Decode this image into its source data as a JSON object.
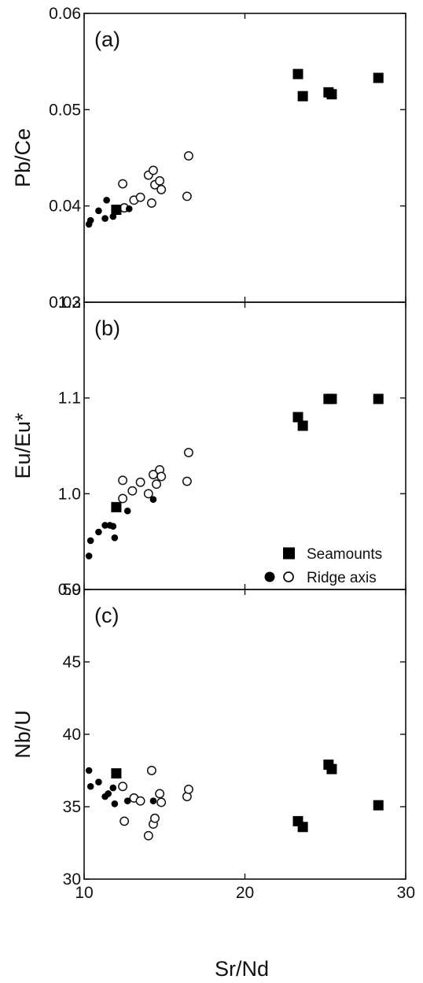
{
  "chart_data": [
    {
      "type": "scatter",
      "panel_label": "(a)",
      "ylabel": "Pb/Ce",
      "xlim": [
        10,
        30
      ],
      "ylim": [
        0.03,
        0.06
      ],
      "yticks": [
        0.03,
        0.04,
        0.05,
        0.06
      ],
      "ytick_labels": [
        "0.03",
        "0.04",
        "0.05",
        "0.06"
      ],
      "series": [
        {
          "marker": "filled-square",
          "points": [
            [
              12.0,
              0.0396
            ],
            [
              23.3,
              0.0537
            ],
            [
              23.6,
              0.0514
            ],
            [
              25.2,
              0.0518
            ],
            [
              25.4,
              0.0516
            ],
            [
              28.3,
              0.0533
            ]
          ]
        },
        {
          "marker": "filled-circle",
          "points": [
            [
              10.3,
              0.0381
            ],
            [
              10.4,
              0.0385
            ],
            [
              10.9,
              0.0395
            ],
            [
              11.3,
              0.0387
            ],
            [
              11.4,
              0.0406
            ],
            [
              11.8,
              0.0389
            ],
            [
              11.9,
              0.0396
            ],
            [
              12.8,
              0.0397
            ]
          ]
        },
        {
          "marker": "open-circle",
          "points": [
            [
              12.4,
              0.0423
            ],
            [
              12.5,
              0.0398
            ],
            [
              13.1,
              0.0406
            ],
            [
              13.5,
              0.0409
            ],
            [
              14.0,
              0.0432
            ],
            [
              14.2,
              0.0403
            ],
            [
              14.3,
              0.0437
            ],
            [
              14.4,
              0.0422
            ],
            [
              14.7,
              0.0426
            ],
            [
              14.8,
              0.0417
            ],
            [
              16.4,
              0.041
            ],
            [
              16.5,
              0.0452
            ]
          ]
        }
      ]
    },
    {
      "type": "scatter",
      "panel_label": "(b)",
      "ylabel": "Eu/Eu*",
      "xlim": [
        10,
        30
      ],
      "ylim": [
        0.9,
        1.2
      ],
      "yticks": [
        0.9,
        1.0,
        1.1,
        1.2
      ],
      "ytick_labels": [
        "0.9",
        "1.0",
        "1.1",
        "1.2"
      ],
      "legend": {
        "position": "bottom-right",
        "entries": [
          {
            "label": "Seamounts",
            "markers": [
              "filled-square"
            ]
          },
          {
            "label": "Ridge axis",
            "markers": [
              "filled-circle",
              "open-circle"
            ]
          }
        ]
      },
      "series": [
        {
          "marker": "filled-square",
          "points": [
            [
              12.0,
              0.986
            ],
            [
              23.3,
              1.08
            ],
            [
              23.6,
              1.071
            ],
            [
              25.2,
              1.099
            ],
            [
              25.4,
              1.099
            ],
            [
              28.3,
              1.099
            ]
          ]
        },
        {
          "marker": "filled-circle",
          "points": [
            [
              10.3,
              0.935
            ],
            [
              10.4,
              0.951
            ],
            [
              10.9,
              0.96
            ],
            [
              11.3,
              0.967
            ],
            [
              11.6,
              0.967
            ],
            [
              11.8,
              0.966
            ],
            [
              11.9,
              0.954
            ],
            [
              12.7,
              0.982
            ],
            [
              14.3,
              0.994
            ]
          ]
        },
        {
          "marker": "open-circle",
          "points": [
            [
              12.4,
              1.014
            ],
            [
              12.4,
              0.995
            ],
            [
              13.0,
              1.003
            ],
            [
              13.5,
              1.012
            ],
            [
              14.0,
              1.0
            ],
            [
              14.3,
              1.02
            ],
            [
              14.5,
              1.01
            ],
            [
              14.7,
              1.025
            ],
            [
              14.8,
              1.018
            ],
            [
              16.4,
              1.013
            ],
            [
              16.5,
              1.043
            ]
          ]
        }
      ]
    },
    {
      "type": "scatter",
      "panel_label": "(c)",
      "ylabel": "Nb/U",
      "xlabel": "Sr/Nd",
      "xlim": [
        10,
        30
      ],
      "ylim": [
        30,
        50
      ],
      "yticks": [
        30,
        35,
        40,
        45,
        50
      ],
      "ytick_labels": [
        "30",
        "35",
        "40",
        "45",
        "50"
      ],
      "xticks": [
        10,
        20,
        30
      ],
      "xtick_labels": [
        "10",
        "20",
        "30"
      ],
      "series": [
        {
          "marker": "filled-square",
          "points": [
            [
              12.0,
              37.3
            ],
            [
              23.3,
              34.0
            ],
            [
              23.6,
              33.6
            ],
            [
              25.2,
              37.9
            ],
            [
              25.4,
              37.6
            ],
            [
              28.3,
              35.1
            ]
          ]
        },
        {
          "marker": "filled-circle",
          "points": [
            [
              10.3,
              37.5
            ],
            [
              10.4,
              36.4
            ],
            [
              10.9,
              36.7
            ],
            [
              11.3,
              35.7
            ],
            [
              11.5,
              35.9
            ],
            [
              11.8,
              36.3
            ],
            [
              11.9,
              35.2
            ],
            [
              12.7,
              35.4
            ],
            [
              14.3,
              35.4
            ]
          ]
        },
        {
          "marker": "open-circle",
          "points": [
            [
              12.4,
              36.4
            ],
            [
              12.5,
              34.0
            ],
            [
              13.1,
              35.6
            ],
            [
              13.5,
              35.4
            ],
            [
              14.0,
              33.0
            ],
            [
              14.2,
              37.5
            ],
            [
              14.3,
              33.8
            ],
            [
              14.4,
              34.2
            ],
            [
              14.7,
              35.9
            ],
            [
              14.8,
              35.3
            ],
            [
              16.4,
              35.7
            ],
            [
              16.5,
              36.2
            ]
          ]
        }
      ]
    }
  ]
}
